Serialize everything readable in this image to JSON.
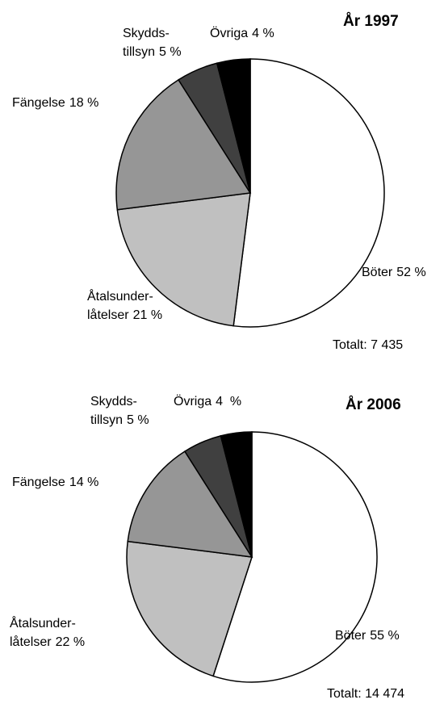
{
  "chart_data": [
    {
      "type": "pie",
      "title": "År 1997",
      "total": "Totalt: 7 435",
      "categories": [
        [
          "Böter"
        ],
        [
          "Åtalsunder-",
          "låtelser"
        ],
        [
          "Fängelse"
        ],
        [
          "Skydds-",
          "tillsyn"
        ],
        [
          "Övriga"
        ]
      ],
      "values": [
        52,
        21,
        18,
        5,
        4
      ],
      "value_labels": [
        "52 %",
        "21 %",
        "18 %",
        "5 %",
        "4 %"
      ],
      "colors": [
        "#ffffff",
        "#c0c0c0",
        "#969696",
        "#404040",
        "#000000"
      ]
    },
    {
      "type": "pie",
      "title": "År 2006",
      "total": "Totalt: 14 474",
      "categories": [
        [
          "Böter"
        ],
        [
          "Åtalsunder-",
          "låtelser"
        ],
        [
          "Fängelse"
        ],
        [
          "Skydds-",
          "tillsyn"
        ],
        [
          "Övriga"
        ]
      ],
      "values": [
        55,
        22,
        14,
        5,
        4
      ],
      "value_labels": [
        "55 %",
        "22 %",
        "14 %",
        "5 %",
        "4  %"
      ],
      "colors": [
        "#ffffff",
        "#c0c0c0",
        "#969696",
        "#404040",
        "#000000"
      ]
    }
  ]
}
